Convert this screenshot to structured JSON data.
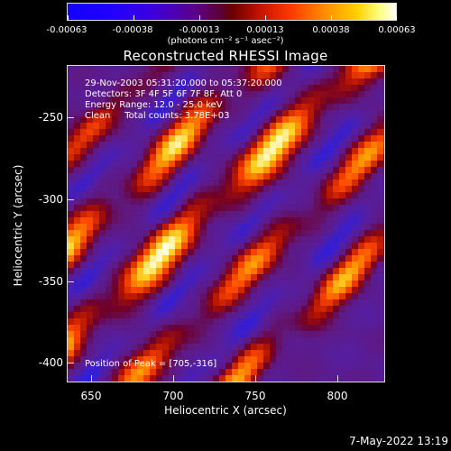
{
  "colorbar": {
    "tick_labels": [
      "-0.00063",
      "-0.00038",
      "-0.00013",
      "0.00013",
      "0.00038",
      "0.00063"
    ],
    "units": "(photons cm⁻² s⁻¹ asec⁻²)"
  },
  "title": "Reconstructed RHESSI Image",
  "info": {
    "time_range": "29-Nov-2003 05:31:20.000 to 05:37:20.000",
    "detectors": "Detectors: 3F 4F 5F 6F 7F 8F, Att 0",
    "energy": "Energy Range: 12.0 - 25.0 keV",
    "clean": "Clean     Total counts: 3.78E+03",
    "peak": "Position of Peak = [705,-316]"
  },
  "axes": {
    "x_label": "Heliocentric X (arcsec)",
    "y_label": "Heliocentric Y (arcsec)",
    "x_ticks": [
      "650",
      "700",
      "750",
      "800"
    ],
    "y_ticks": [
      "-250",
      "-300",
      "-350",
      "-400"
    ]
  },
  "timestamp": "7-May-2022 13:19"
}
